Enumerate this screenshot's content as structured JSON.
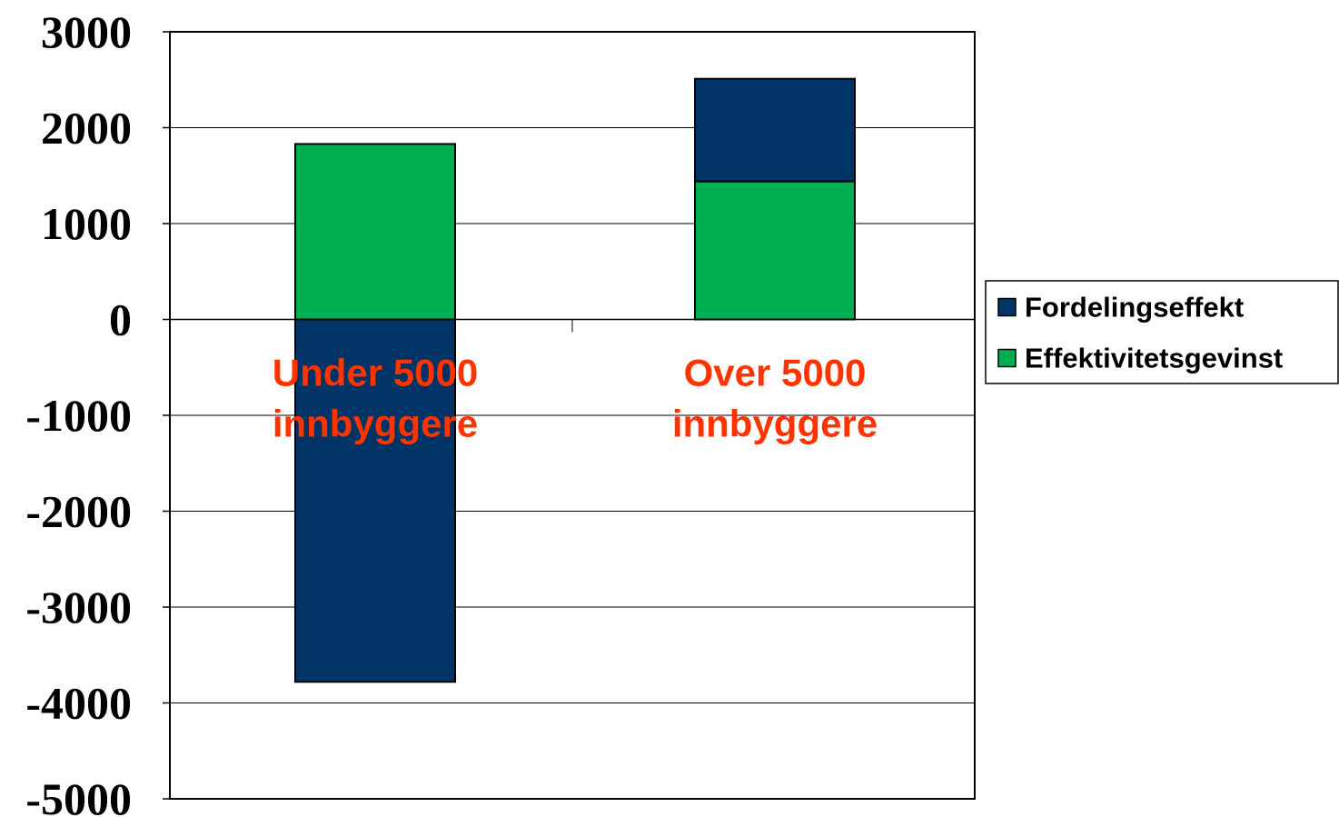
{
  "chart_data": {
    "type": "bar",
    "stacked": true,
    "categories": [
      "Under 5000 innbyggere",
      "Over 5000 innbyggere"
    ],
    "category_label_lines": [
      [
        "Under 5000",
        "innbyggere"
      ],
      [
        "Over 5000",
        "innbyggere"
      ]
    ],
    "series": [
      {
        "name": "Fordelingseffekt",
        "values": [
          -3780,
          1070
        ],
        "color": "#003366"
      },
      {
        "name": "Effektivitetsgevinst",
        "values": [
          1830,
          1440
        ],
        "color": "#00B050"
      }
    ],
    "ylim": [
      -5000,
      3000
    ],
    "yticks": [
      3000,
      2000,
      1000,
      0,
      -1000,
      -2000,
      -3000,
      -4000,
      -5000
    ],
    "grid": true,
    "legend_position": "right",
    "category_label_color": "#FF3300"
  }
}
